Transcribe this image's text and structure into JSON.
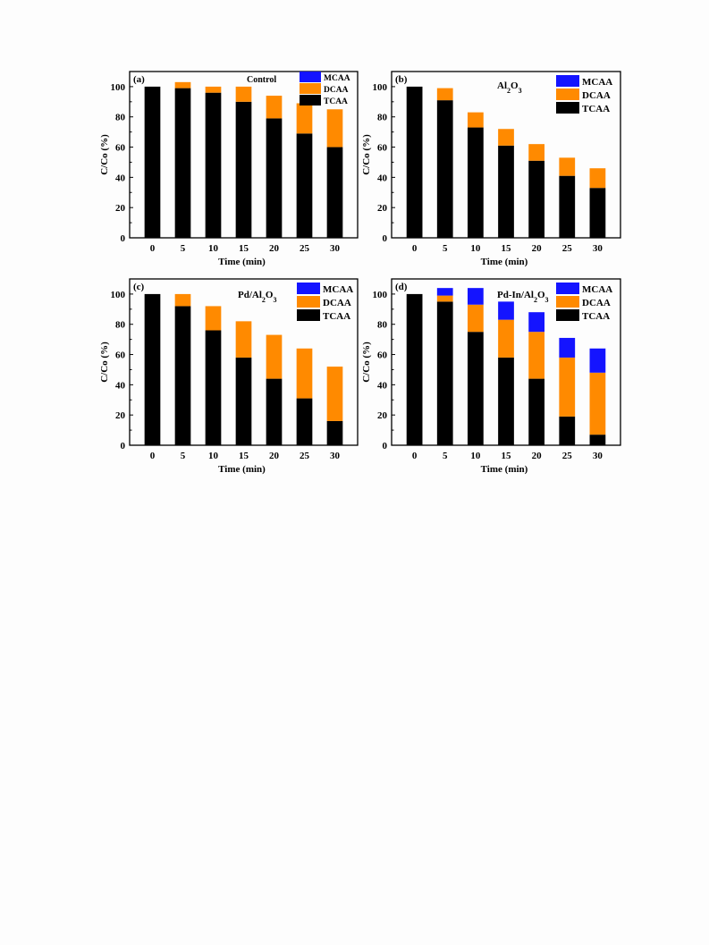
{
  "colors": {
    "TCAA": "#000000",
    "DCAA": "#ff8a00",
    "MCAA": "#1414ff"
  },
  "chart_data": [
    {
      "type": "bar",
      "panel": "(a)",
      "title": "Control",
      "xlabel": "Time (min)",
      "ylabel": "C/Co (%)",
      "categories": [
        "0",
        "5",
        "10",
        "15",
        "20",
        "25",
        "30"
      ],
      "ylim": [
        0,
        110
      ],
      "yticks": [
        0,
        20,
        40,
        60,
        80,
        100
      ],
      "stacked": true,
      "series": [
        {
          "name": "TCAA",
          "values": [
            100,
            99,
            96,
            90,
            79,
            69,
            60
          ]
        },
        {
          "name": "DCAA",
          "values": [
            0,
            4,
            4,
            10,
            15,
            20,
            25
          ]
        },
        {
          "name": "MCAA",
          "values": [
            0,
            0,
            0,
            0,
            0,
            0,
            0
          ]
        }
      ],
      "legend": "top-right"
    },
    {
      "type": "bar",
      "panel": "(b)",
      "title": "Al2O3",
      "xlabel": "Time (min)",
      "ylabel": "C/Co (%)",
      "categories": [
        "0",
        "5",
        "10",
        "15",
        "20",
        "25",
        "30"
      ],
      "ylim": [
        0,
        110
      ],
      "yticks": [
        0,
        20,
        40,
        60,
        80,
        100
      ],
      "stacked": true,
      "series": [
        {
          "name": "TCAA",
          "values": [
            100,
            91,
            73,
            61,
            51,
            41,
            33
          ]
        },
        {
          "name": "DCAA",
          "values": [
            0,
            8,
            10,
            11,
            11,
            12,
            13
          ]
        },
        {
          "name": "MCAA",
          "values": [
            0,
            0,
            0,
            0,
            0,
            0,
            0
          ]
        }
      ],
      "legend": "top-right"
    },
    {
      "type": "bar",
      "panel": "(c)",
      "title": "Pd/Al2O3",
      "xlabel": "Time (min)",
      "ylabel": "C/Co (%)",
      "categories": [
        "0",
        "5",
        "10",
        "15",
        "20",
        "25",
        "30"
      ],
      "ylim": [
        0,
        110
      ],
      "yticks": [
        0,
        20,
        40,
        60,
        80,
        100
      ],
      "stacked": true,
      "series": [
        {
          "name": "TCAA",
          "values": [
            100,
            92,
            76,
            58,
            44,
            31,
            16
          ]
        },
        {
          "name": "DCAA",
          "values": [
            0,
            8,
            16,
            24,
            29,
            33,
            36
          ]
        },
        {
          "name": "MCAA",
          "values": [
            0,
            0,
            0,
            0,
            0,
            0,
            0
          ]
        }
      ],
      "legend": "top-right"
    },
    {
      "type": "bar",
      "panel": "(d)",
      "title": "Pd-In/Al2O3",
      "xlabel": "Time (min)",
      "ylabel": "C/Co (%)",
      "categories": [
        "0",
        "5",
        "10",
        "15",
        "20",
        "25",
        "30"
      ],
      "ylim": [
        0,
        110
      ],
      "yticks": [
        0,
        20,
        40,
        60,
        80,
        100
      ],
      "stacked": true,
      "series": [
        {
          "name": "TCAA",
          "values": [
            100,
            95,
            75,
            58,
            44,
            19,
            7
          ]
        },
        {
          "name": "DCAA",
          "values": [
            0,
            4,
            18,
            25,
            31,
            39,
            41
          ]
        },
        {
          "name": "MCAA",
          "values": [
            0,
            5,
            11,
            12,
            13,
            13,
            16
          ]
        }
      ],
      "legend": "top-right"
    }
  ]
}
